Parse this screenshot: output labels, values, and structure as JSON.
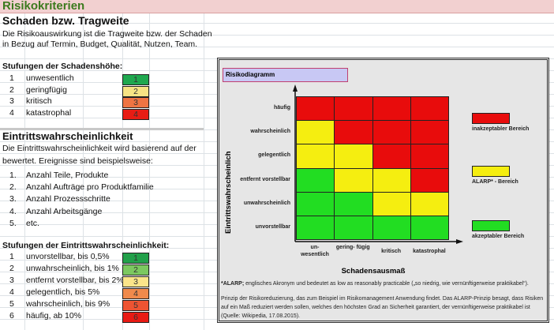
{
  "title": "Risikokriterien",
  "damage": {
    "heading": "Schaden bzw. Tragweite",
    "text1": "Die Risikoauswirkung ist die Tragweite bzw. der Schaden",
    "text2": "in Bezug auf Termin, Budget, Qualität, Nutzen, Team.",
    "levels_heading": "Stufungen der Schadenshöhe:",
    "levels": [
      {
        "n": "1",
        "label": "unwesentlich",
        "value": "1",
        "color": "#1fa84f"
      },
      {
        "n": "2",
        "label": "geringfügig",
        "value": "2",
        "color": "#f7e484"
      },
      {
        "n": "3",
        "label": "kritisch",
        "value": "3",
        "color": "#ef7443"
      },
      {
        "n": "4",
        "label": "katastrophal",
        "value": "4",
        "color": "#e81c14"
      }
    ]
  },
  "probability": {
    "heading": "Eintrittswahrscheinlichkeit",
    "text1": "Die Eintrittswahrscheinlichkeit  wird basierend auf der",
    "text2": "bewertet. Ereignisse sind beispielsweise:",
    "examples": [
      {
        "n": "1.",
        "label": "Anzahl Teile, Produkte"
      },
      {
        "n": "2.",
        "label": "Anzahl Aufträge pro Produktfamilie"
      },
      {
        "n": "3.",
        "label": "Anzahl Prozessschritte"
      },
      {
        "n": "4.",
        "label": "Anzahl Arbeitsgänge"
      },
      {
        "n": "5.",
        "label": "etc."
      }
    ],
    "levels_heading": "Stufungen der Eintrittswahrscheinlichkeit:",
    "levels": [
      {
        "n": "1",
        "label": "unvorstellbar, bis 0,5%",
        "value": "1",
        "color": "#22a04a"
      },
      {
        "n": "2",
        "label": "unwahrscheinlich, bis 1%",
        "value": "2",
        "color": "#7cc860"
      },
      {
        "n": "3",
        "label": "entfernt vorstellbar, bis 2%",
        "value": "3",
        "color": "#fbe58a"
      },
      {
        "n": "4",
        "label": "gelegentlich, bis 5%",
        "value": "4",
        "color": "#f08a4c"
      },
      {
        "n": "5",
        "label": "wahrscheinlich, bis 9%",
        "value": "5",
        "color": "#ee5432"
      },
      {
        "n": "6",
        "label": "häufig, ab 10%",
        "value": "6",
        "color": "#e81a14"
      }
    ]
  },
  "diagram": {
    "title": "Risikodiagramm",
    "y_axis": "Eintrittswahrscheinlich",
    "x_axis": "Schadensausmaß",
    "rows": [
      "häufig",
      "wahrscheinlich",
      "gelegentlich",
      "entfernt vorstellbar",
      "unwahrscheinlich",
      "unvorstellbar"
    ],
    "cols": [
      "un- wesentlich",
      "gering- fügig",
      "kritisch",
      "katastrophal"
    ],
    "matrix": [
      [
        "R",
        "R",
        "R",
        "R"
      ],
      [
        "Y",
        "R",
        "R",
        "R"
      ],
      [
        "Y",
        "Y",
        "R",
        "R"
      ],
      [
        "G",
        "Y",
        "Y",
        "R"
      ],
      [
        "G",
        "G",
        "Y",
        "Y"
      ],
      [
        "G",
        "G",
        "G",
        "G"
      ]
    ],
    "colors": {
      "R": "#e80c0c",
      "Y": "#f5ee10",
      "G": "#22dd22"
    },
    "legend": [
      {
        "key": "R",
        "label": "inakzeptabler Bereich"
      },
      {
        "key": "Y",
        "label": "ALARP* - Bereich"
      },
      {
        "key": "G",
        "label": "akzeptabler Bereich"
      }
    ],
    "footnote_term": "*ALARP;",
    "footnote": " englisches Akronym und bedeutet as low as reasonably practicable („so niedrig, wie vernünftigerweise praktikabel“).",
    "principle": "Prinzip der Risikoreduzierung, das zum Beispiel im Risikomanagement Anwendung findet. Das ALARP-Prinzip besagt, dass Risiken auf ein Maß reduziert werden sollen, welches den höchsten Grad an Sicherheit garantiert, der vernünftigerweise praktikabel ist (Quelle: Wikipedia, 17.08.2015)."
  }
}
